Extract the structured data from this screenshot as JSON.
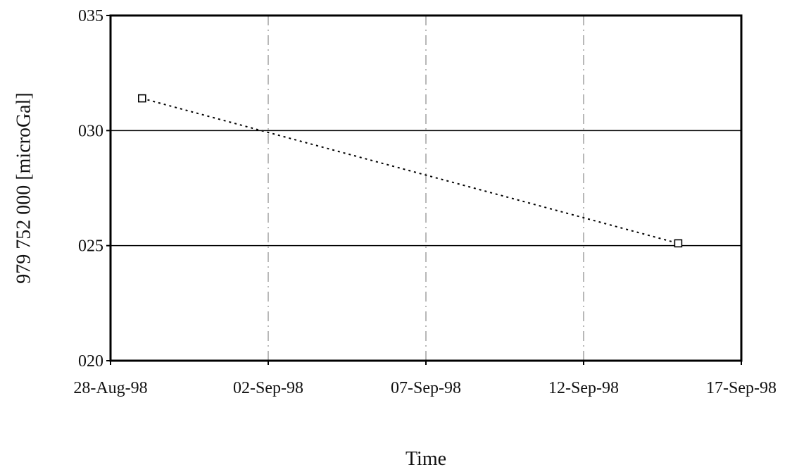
{
  "chart_data": {
    "type": "line",
    "title": "",
    "xlabel": "Time",
    "ylabel": "979 752 000 [microGal]",
    "x_is_date": true,
    "xlim": [
      "1998-08-28",
      "1998-09-17"
    ],
    "ylim": [
      20,
      35
    ],
    "x_ticks": [
      "1998-08-28",
      "1998-09-02",
      "1998-09-07",
      "1998-09-12",
      "1998-09-17"
    ],
    "x_tick_labels": [
      "28-Aug-98",
      "02-Sep-98",
      "07-Sep-98",
      "12-Sep-98",
      "17-Sep-98"
    ],
    "y_ticks": [
      20,
      25,
      30,
      35
    ],
    "y_tick_labels": [
      "020",
      "025",
      "030",
      "035"
    ],
    "grid": true,
    "legend": "none",
    "series": [
      {
        "x": [
          "1998-08-29",
          "1998-09-15"
        ],
        "values": [
          31.4,
          25.1
        ],
        "marker": "square",
        "line_style": "dotted",
        "color": "#000000"
      }
    ]
  }
}
